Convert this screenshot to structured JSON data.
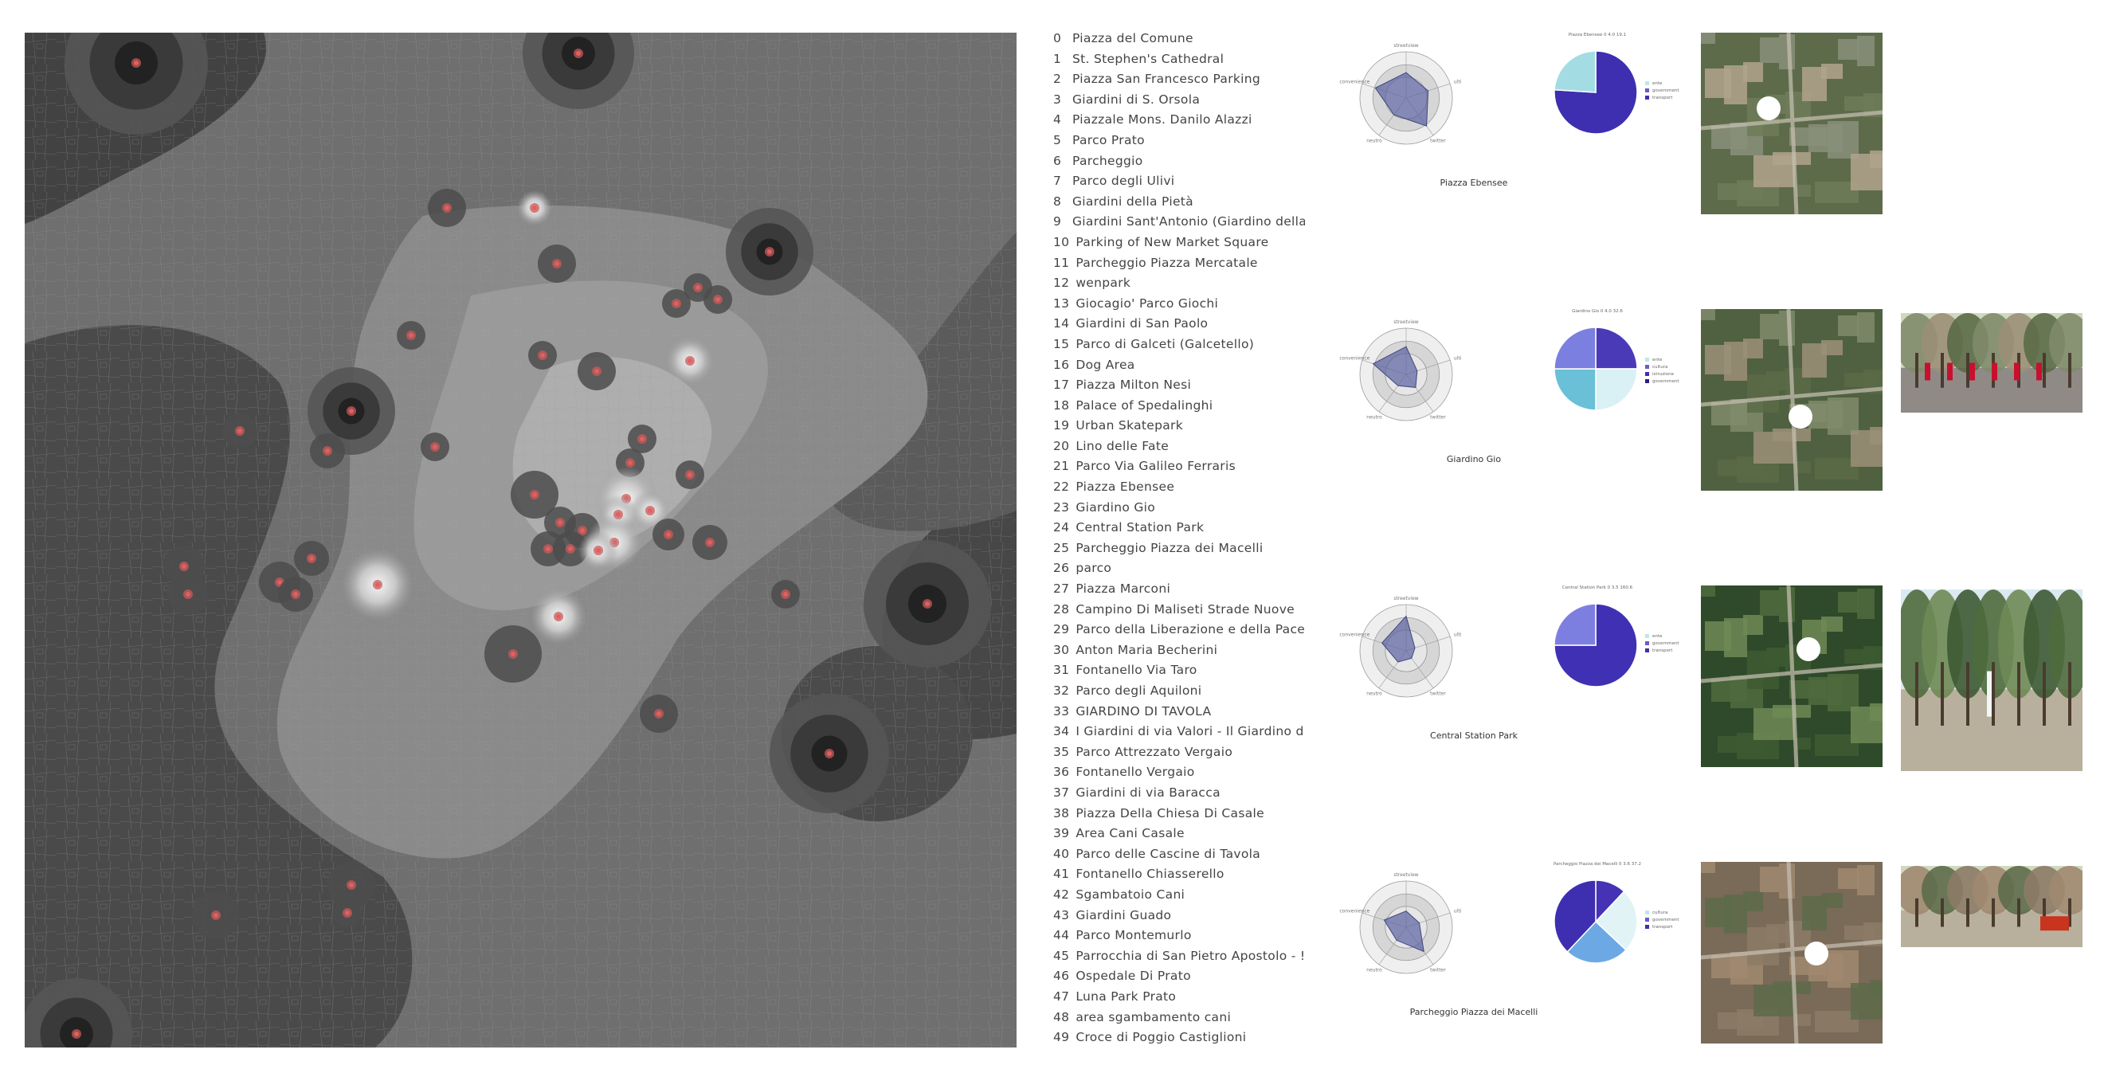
{
  "sites": [
    {
      "index": "0",
      "name": "Piazza del Comune"
    },
    {
      "index": "1",
      "name": "St. Stephen's Cathedral"
    },
    {
      "index": "2",
      "name": "Piazza San Francesco Parking"
    },
    {
      "index": "3",
      "name": "Giardini di S. Orsola"
    },
    {
      "index": "4",
      "name": "Piazzale Mons. Danilo Alazzi"
    },
    {
      "index": "5",
      "name": "Parco Prato"
    },
    {
      "index": "6",
      "name": "Parcheggio"
    },
    {
      "index": "7",
      "name": "Parco degli Ulivi"
    },
    {
      "index": "8",
      "name": "Giardini della Pietà"
    },
    {
      "index": "9",
      "name": "Giardini Sant'Antonio (Giardino della Pa"
    },
    {
      "index": "10",
      "name": "Parking of New Market Square"
    },
    {
      "index": "11",
      "name": "Parcheggio Piazza Mercatale"
    },
    {
      "index": "12",
      "name": "wenpark"
    },
    {
      "index": "13",
      "name": "Giocagio' Parco Giochi"
    },
    {
      "index": "14",
      "name": "Giardini di San Paolo"
    },
    {
      "index": "15",
      "name": "Parco di Galceti (Galcetello)"
    },
    {
      "index": "16",
      "name": "Dog Area"
    },
    {
      "index": "17",
      "name": "Piazza Milton Nesi"
    },
    {
      "index": "18",
      "name": "Palace of Spedalinghi"
    },
    {
      "index": "19",
      "name": "Urban Skatepark"
    },
    {
      "index": "20",
      "name": "Lino delle Fate"
    },
    {
      "index": "21",
      "name": "Parco Via Galileo Ferraris"
    },
    {
      "index": "22",
      "name": "Piazza Ebensee"
    },
    {
      "index": "23",
      "name": "Giardino Gio"
    },
    {
      "index": "24",
      "name": "Central Station Park"
    },
    {
      "index": "25",
      "name": "Parcheggio Piazza dei Macelli"
    },
    {
      "index": "26",
      "name": "parco"
    },
    {
      "index": "27",
      "name": "Piazza Marconi"
    },
    {
      "index": "28",
      "name": "Campino Di Maliseti Strade Nuove"
    },
    {
      "index": "29",
      "name": "Parco della Liberazione e della Pace"
    },
    {
      "index": "30",
      "name": "Anton Maria Becherini"
    },
    {
      "index": "31",
      "name": "Fontanello Via Taro"
    },
    {
      "index": "32",
      "name": "Parco degli Aquiloni"
    },
    {
      "index": "33",
      "name": "GIARDINO DI TAVOLA"
    },
    {
      "index": "34",
      "name": "I Giardini di via Valori - Il Giardino di !"
    },
    {
      "index": "35",
      "name": "Parco Attrezzato Vergaio"
    },
    {
      "index": "36",
      "name": "Fontanello Vergaio"
    },
    {
      "index": "37",
      "name": "Giardini di via Baracca"
    },
    {
      "index": "38",
      "name": "Piazza Della Chiesa Di Casale"
    },
    {
      "index": "39",
      "name": "Area Cani Casale"
    },
    {
      "index": "40",
      "name": "Parco delle Cascine di Tavola"
    },
    {
      "index": "41",
      "name": "Fontanello Chiasserello"
    },
    {
      "index": "42",
      "name": "Sgambatoio Cani"
    },
    {
      "index": "43",
      "name": "Giardini Guado"
    },
    {
      "index": "44",
      "name": "Parco Montemurlo"
    },
    {
      "index": "45",
      "name": "Parrocchia di San Pietro Apostolo - !"
    },
    {
      "index": "46",
      "name": "Ospedale Di Prato"
    },
    {
      "index": "47",
      "name": "Luna Park Prato"
    },
    {
      "index": "48",
      "name": "area sgambamento cani"
    },
    {
      "index": "49",
      "name": "Croce di Poggio Castiglioni"
    }
  ],
  "radar_axes": [
    "streetview",
    "ulti",
    "twitter",
    "neutro",
    "convenience"
  ],
  "panels": [
    {
      "name": "Piazza Ebensee",
      "pie_title": "Piazza Ebensee  0  4.0  19.1",
      "radar": [
        0.55,
        0.5,
        0.75,
        0.45,
        0.7
      ],
      "legend": [
        "ente",
        "government",
        "transport"
      ],
      "slices": [
        {
          "value": 0.76,
          "color": "#3d2fb0"
        },
        {
          "value": 0.24,
          "color": "#a3dde3"
        }
      ],
      "has_street_photo": false
    },
    {
      "name": "Giardino Gio",
      "pie_title": "Giardino Gio  0  4.0  32.6",
      "radar": [
        0.6,
        0.25,
        0.35,
        0.3,
        0.75
      ],
      "legend": [
        "ente",
        "cultura",
        "istruzione",
        "government"
      ],
      "slices": [
        {
          "value": 0.25,
          "color": "#4a3ab8"
        },
        {
          "value": 0.25,
          "color": "#d9f1f4"
        },
        {
          "value": 0.25,
          "color": "#6ac0d6"
        },
        {
          "value": 0.25,
          "color": "#7b7fe0"
        }
      ],
      "has_street_photo": true
    },
    {
      "name": "Central Station Park",
      "pie_title": "Central Station Park  0  3.5  160.6",
      "radar": [
        0.75,
        0.2,
        0.2,
        0.3,
        0.55
      ],
      "legend": [
        "ente",
        "government",
        "transport"
      ],
      "slices": [
        {
          "value": 0.75,
          "color": "#4030b3"
        },
        {
          "value": 0.25,
          "color": "#7d7fe0"
        }
      ],
      "has_street_photo": true
    },
    {
      "name": "Parcheggio Piazza dei Macelli",
      "pie_title": "Parcheggio Piazza dei Macelli  0  3.6  37.2",
      "radar": [
        0.35,
        0.3,
        0.65,
        0.35,
        0.5
      ],
      "legend": [
        "cultura",
        "government",
        "transport"
      ],
      "slices": [
        {
          "value": 0.12,
          "color": "#4632b5"
        },
        {
          "value": 0.25,
          "color": "#e2f3f6"
        },
        {
          "value": 0.25,
          "color": "#6ca9e4"
        },
        {
          "value": 0.38,
          "color": "#3d2fb0"
        }
      ],
      "has_street_photo": true
    }
  ]
}
